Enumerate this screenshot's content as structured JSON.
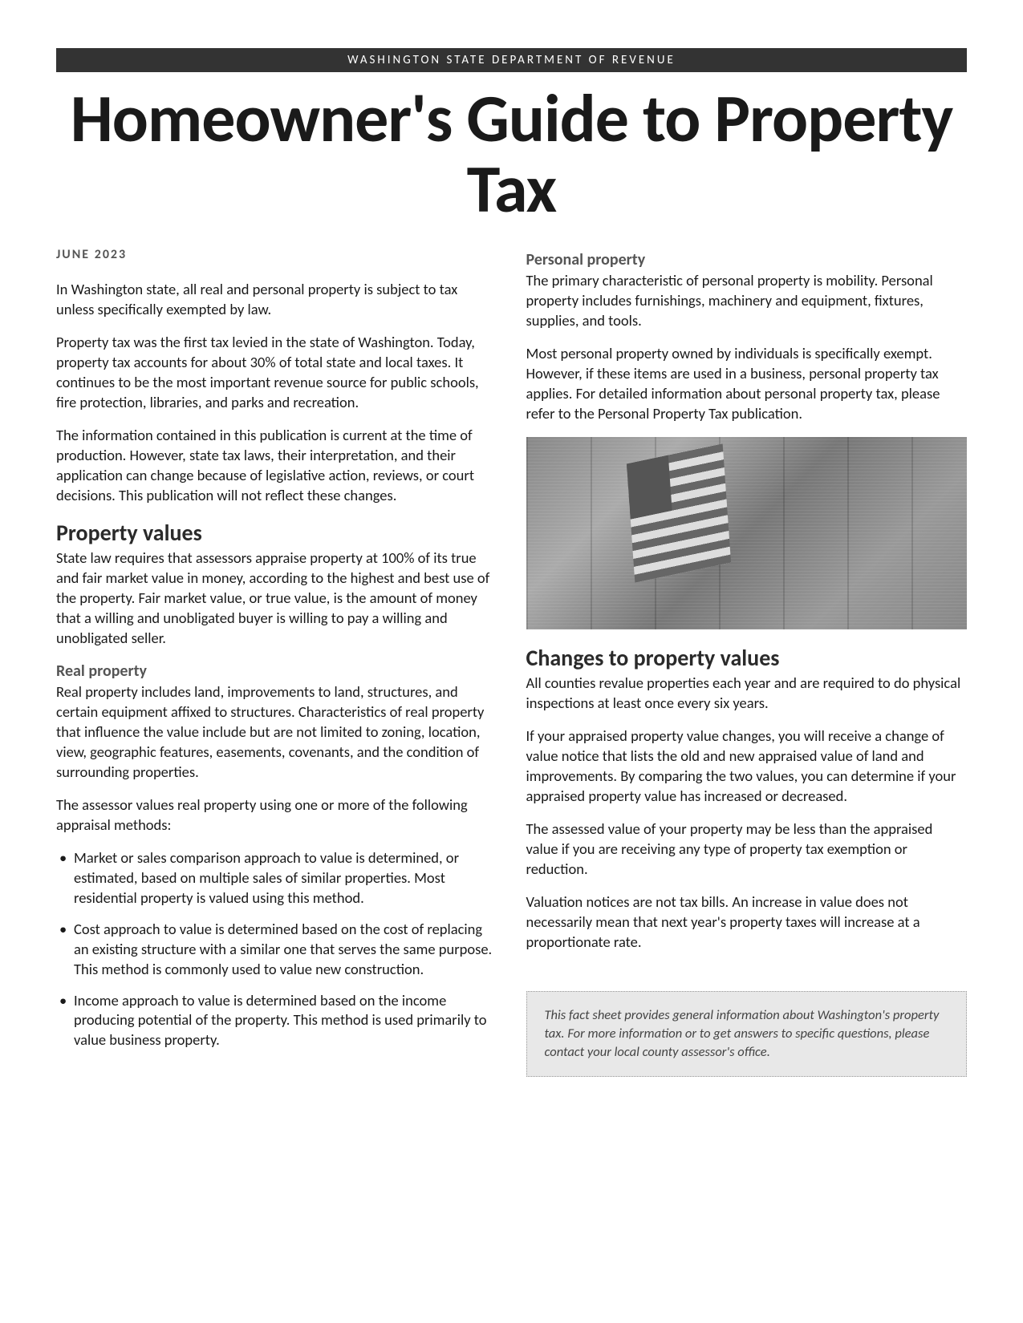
{
  "header_bar": "WASHINGTON STATE DEPARTMENT OF REVENUE",
  "title": "Homeowner's Guide to Property Tax",
  "date": "JUNE 2023",
  "left": {
    "intro1": "In Washington state, all real and personal property is subject to tax unless specifically exempted by law.",
    "intro2": "Property tax was the first tax levied in the state of Washington. Today, property tax accounts for about 30% of total state and local taxes. It continues to be the most important revenue source for public schools, fire protection, libraries, and parks and recreation.",
    "intro3": "The information contained in this publication is current at the time of production. However, state tax laws, their interpretation, and their application can change because of legislative action, reviews, or court decisions. This publication will not reflect these changes.",
    "h2_propvalues": "Property values",
    "propvalues_p": "State law requires that assessors appraise property at 100% of its true and fair market value in money, according to the highest and best use of the property. Fair market value, or true value, is the amount of money that a willing and unobligated buyer is willing to pay a willing and unobligated seller.",
    "h3_realprop": "Real property",
    "realprop_p1": "Real property includes land, improvements to land, structures, and certain equipment affixed to structures. Characteristics of real property that influence the value include but are not limited to zoning, location, view, geographic features, easements, covenants, and the condition of surrounding properties.",
    "realprop_p2": "The assessor values real property using one or more of the following appraisal methods:",
    "methods": [
      "Market or sales comparison approach to value is determined, or estimated, based on multiple sales of similar properties. Most residential property is valued using this method.",
      "Cost approach to value is determined based on the cost of replacing an existing structure with a similar one that serves the same purpose. This method is commonly used to value new construction.",
      "Income approach to value is determined based on the income producing potential of the property. This method is used primarily to value business property."
    ]
  },
  "right": {
    "h3_personal": "Personal property",
    "personal_p1": "The primary characteristic of personal property is mobility. Personal property includes furnishings, machinery and equipment, fixtures, supplies, and tools.",
    "personal_p2": "Most personal property owned by individuals is specifically exempt. However, if these items are used in a business, personal property tax applies. For detailed information about personal property tax, please refer to the Personal Property Tax publication.",
    "h2_changes": "Changes to property values",
    "changes_p1": "All counties revalue properties each year and are required to do physical inspections at least once every six years.",
    "changes_p2": "If your appraised property value changes, you will receive a change of value notice that lists the old and new appraised value of land and improvements. By comparing the two values, you can determine if your appraised property value has increased or decreased.",
    "changes_p3": "The assessed value of your property may be less than the appraised value if you are receiving any type of property tax exemption or reduction.",
    "changes_p4": "Valuation notices are not tax bills. An increase in value does not necessarily mean that next year's property taxes will increase at a proportionate rate.",
    "callout": "This fact sheet provides general information about Washington's property tax. For more information or to get answers to specific questions, please contact your local county assessor's office."
  }
}
